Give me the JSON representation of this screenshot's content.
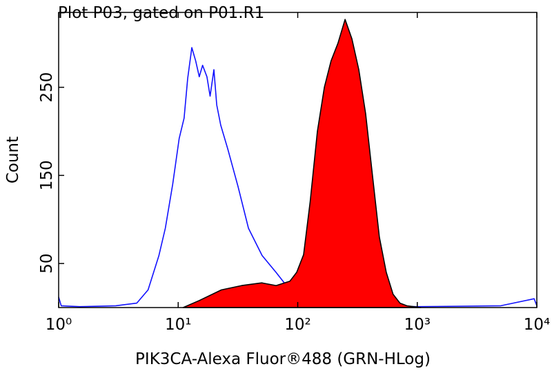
{
  "chart_data": {
    "type": "line",
    "title": "Plot P03, gated on P01.R1",
    "x_label": "PIK3CA-Alexa Fluor®488 (GRN-HLog)",
    "y_label": "Count",
    "xscale": "log",
    "xlim": [
      1,
      10000
    ],
    "xticks": [
      {
        "value": 1,
        "label": "10⁰"
      },
      {
        "value": 10,
        "label": "10¹"
      },
      {
        "value": 100,
        "label": "10²"
      },
      {
        "value": 1000,
        "label": "10³"
      },
      {
        "value": 10000,
        "label": "10⁴"
      }
    ],
    "ylim": [
      0,
      335
    ],
    "yticks": [
      50,
      150,
      250
    ],
    "series": [
      {
        "color": "#1010ff",
        "filled": false,
        "x": [
          1,
          1.05,
          1.5,
          3,
          4.5,
          5.6,
          6.9,
          7.8,
          9,
          10.2,
          11.2,
          12,
          13,
          14,
          15,
          16,
          17.4,
          18.5,
          19.9,
          21,
          22.7,
          26,
          31.7,
          38.7,
          50.4,
          65.8,
          85.8,
          112,
          150,
          200,
          500,
          1000,
          5000,
          9500,
          10000
        ],
        "values": [
          12,
          2,
          1,
          2,
          5,
          20,
          59,
          90,
          140,
          192,
          215,
          260,
          295,
          280,
          262,
          275,
          262,
          240,
          270,
          230,
          207,
          180,
          137,
          90,
          59,
          40,
          20,
          5,
          3,
          2,
          2,
          1,
          2,
          10,
          2
        ]
      },
      {
        "color": "#ff0000",
        "edgecolor": "#000000",
        "filled": true,
        "x": [
          11,
          15,
          23,
          34,
          50,
          66,
          86,
          98,
          112,
          127,
          146,
          167,
          190,
          217,
          249,
          284,
          324,
          370,
          422,
          482,
          550,
          628,
          717,
          818,
          1070
        ],
        "values": [
          0,
          8,
          20,
          25,
          28,
          25,
          30,
          40,
          60,
          120,
          200,
          250,
          280,
          300,
          327,
          305,
          270,
          220,
          150,
          80,
          40,
          15,
          5,
          2,
          0
        ]
      }
    ]
  }
}
